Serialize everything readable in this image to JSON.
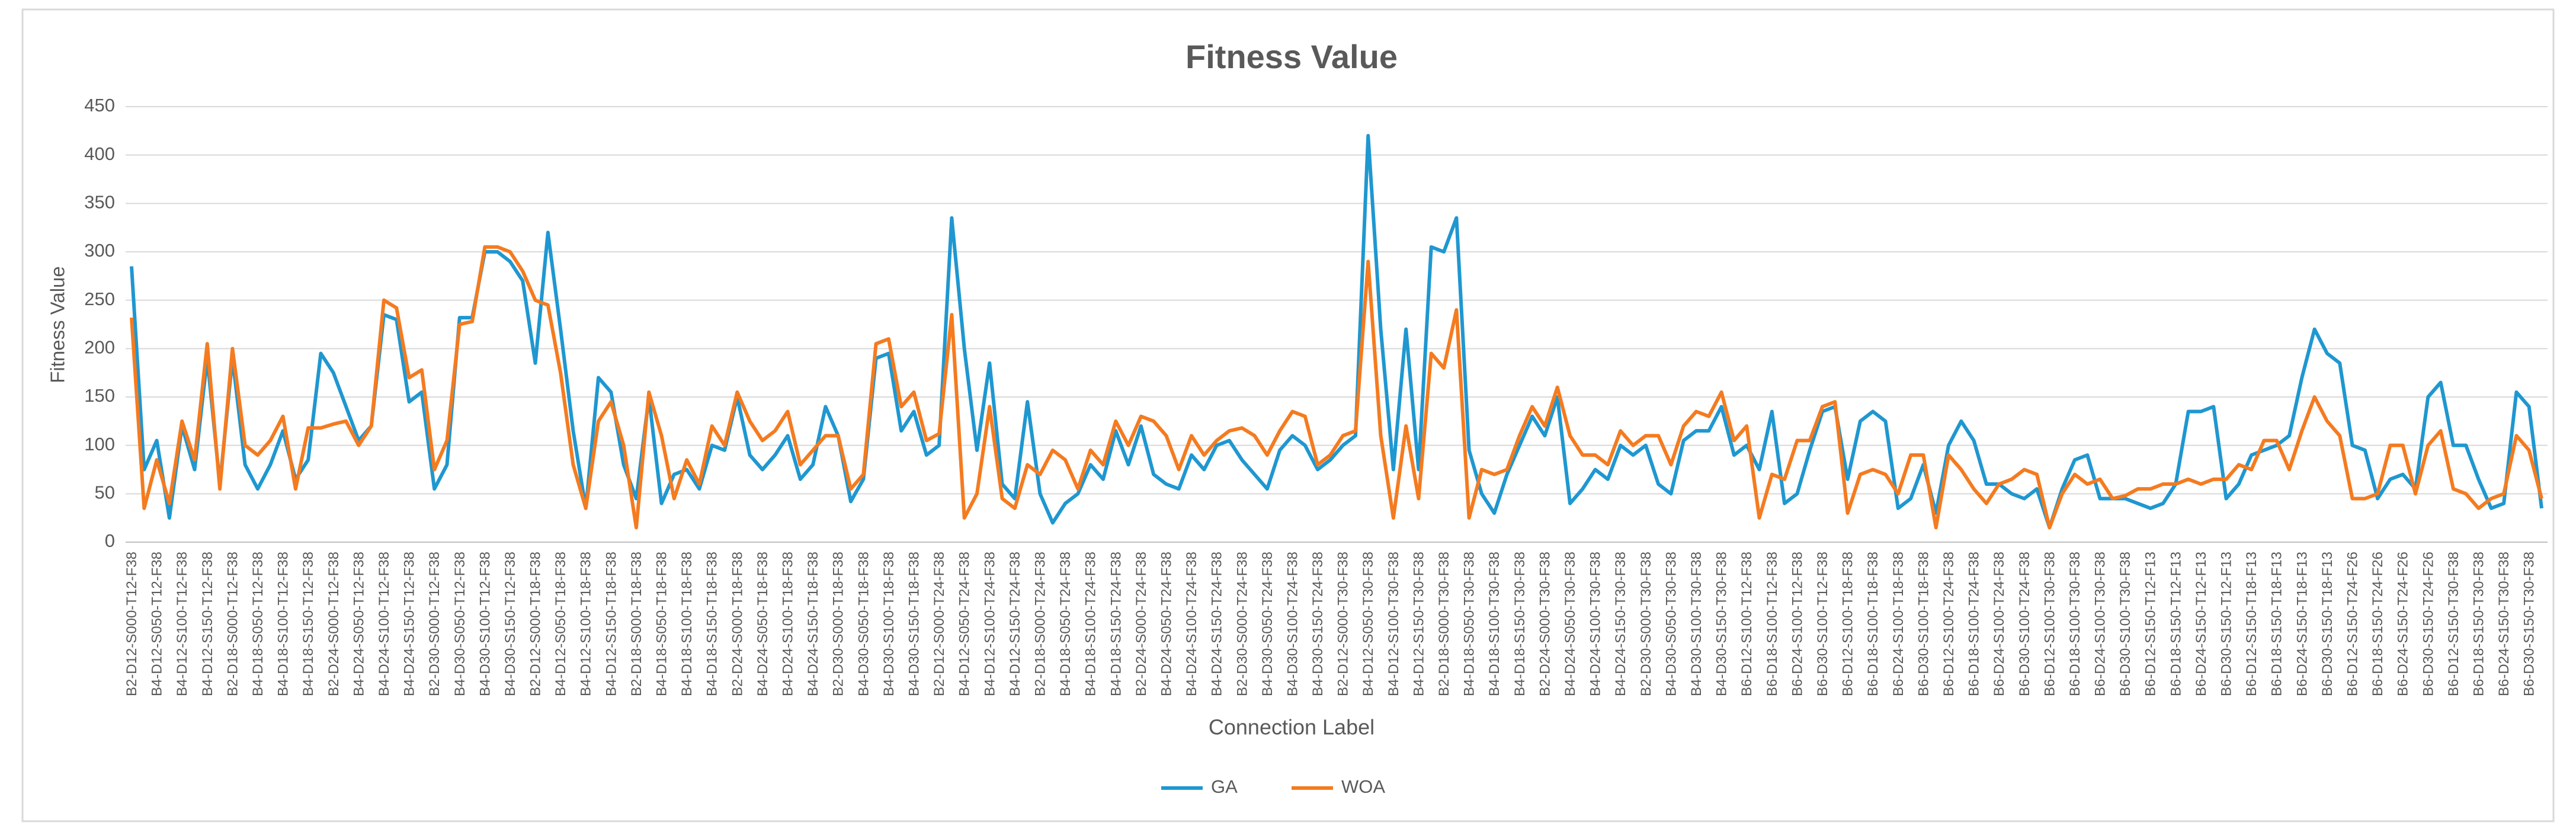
{
  "chart_data": {
    "type": "line",
    "title": "Fitness Value",
    "x_label": "Connection Label",
    "y_label": "Fitness Value",
    "ylim": [
      0,
      450
    ],
    "yticks": [
      0,
      50,
      100,
      150,
      200,
      250,
      300,
      350,
      400,
      450
    ],
    "grid": true,
    "legend": "bottom",
    "categories": [
      "B2-D12-S000-T12-F38",
      null,
      "B4-D12-S050-T12-F38",
      null,
      "B4-D12-S100-T12-F38",
      null,
      "B4-D12-S150-T12-F38",
      null,
      "B2-D18-S000-T12-F38",
      null,
      "B4-D18-S050-T12-F38",
      null,
      "B4-D18-S100-T12-F38",
      null,
      "B4-D18-S150-T12-F38",
      null,
      "B2-D24-S000-T12-F38",
      null,
      "B4-D24-S050-T12-F38",
      null,
      "B4-D24-S100-T12-F38",
      null,
      "B4-D24-S150-T12-F38",
      null,
      "B2-D30-S000-T12-F38",
      null,
      "B4-D30-S050-T12-F38",
      null,
      "B4-D30-S100-T12-F38",
      null,
      "B4-D30-S150-T12-F38",
      null,
      "B2-D12-S000-T18-F38",
      null,
      "B4-D12-S050-T18-F38",
      null,
      "B4-D12-S100-T18-F38",
      null,
      "B4-D12-S150-T18-F38",
      null,
      "B2-D18-S000-T18-F38",
      null,
      "B4-D18-S050-T18-F38",
      null,
      "B4-D18-S100-T18-F38",
      null,
      "B4-D18-S150-T18-F38",
      null,
      "B2-D24-S000-T18-F38",
      null,
      "B4-D24-S050-T18-F38",
      null,
      "B4-D24-S100-T18-F38",
      null,
      "B4-D24-S150-T18-F38",
      null,
      "B2-D30-S000-T18-F38",
      null,
      "B4-D30-S050-T18-F38",
      null,
      "B4-D30-S100-T18-F38",
      null,
      "B4-D30-S150-T18-F38",
      null,
      "B2-D12-S000-T24-F38",
      null,
      "B4-D12-S050-T24-F38",
      null,
      "B4-D12-S100-T24-F38",
      null,
      "B4-D12-S150-T24-F38",
      null,
      "B2-D18-S000-T24-F38",
      null,
      "B4-D18-S050-T24-F38",
      null,
      "B4-D18-S100-T24-F38",
      null,
      "B4-D18-S150-T24-F38",
      null,
      "B2-D24-S000-T24-F38",
      null,
      "B4-D24-S050-T24-F38",
      null,
      "B4-D24-S100-T24-F38",
      null,
      "B4-D24-S150-T24-F38",
      null,
      "B2-D30-S000-T24-F38",
      null,
      "B4-D30-S050-T24-F38",
      null,
      "B4-D30-S100-T24-F38",
      null,
      "B4-D30-S150-T24-F38",
      null,
      "B2-D12-S000-T30-F38",
      null,
      "B4-D12-S050-T30-F38",
      null,
      "B4-D12-S100-T30-F38",
      null,
      "B4-D12-S150-T30-F38",
      null,
      "B2-D18-S000-T30-F38",
      null,
      "B4-D18-S050-T30-F38",
      null,
      "B4-D18-S100-T30-F38",
      null,
      "B4-D18-S150-T30-F38",
      null,
      "B2-D24-S000-T30-F38",
      null,
      "B4-D24-S050-T30-F38",
      null,
      "B4-D24-S100-T30-F38",
      null,
      "B4-D24-S150-T30-F38",
      null,
      "B2-D30-S000-T30-F38",
      null,
      "B4-D30-S050-T30-F38",
      null,
      "B4-D30-S100-T30-F38",
      null,
      "B4-D30-S150-T30-F38",
      null,
      "B6-D12-S100-T12-F38",
      null,
      "B6-D18-S100-T12-F38",
      null,
      "B6-D24-S100-T12-F38",
      null,
      "B6-D30-S100-T12-F38",
      null,
      "B6-D12-S100-T18-F38",
      null,
      "B6-D18-S100-T18-F38",
      null,
      "B6-D24-S100-T18-F38",
      null,
      "B6-D30-S100-T18-F38",
      null,
      "B6-D12-S100-T24-F38",
      null,
      "B6-D18-S100-T24-F38",
      null,
      "B6-D24-S100-T24-F38",
      null,
      "B6-D30-S100-T24-F38",
      null,
      "B6-D12-S100-T30-F38",
      null,
      "B6-D18-S100-T30-F38",
      null,
      "B6-D24-S100-T30-F38",
      null,
      "B6-D30-S100-T30-F38",
      null,
      "B6-D12-S150-T12-F13",
      null,
      "B6-D18-S150-T12-F13",
      null,
      "B6-D24-S150-T12-F13",
      null,
      "B6-D30-S150-T12-F13",
      null,
      "B6-D12-S150-T18-F13",
      null,
      "B6-D18-S150-T18-F13",
      null,
      "B6-D24-S150-T18-F13",
      null,
      "B6-D30-S150-T18-F13",
      null,
      "B6-D12-S150-T24-F26",
      null,
      "B6-D18-S150-T24-F26",
      null,
      "B6-D24-S150-T24-F26",
      null,
      "B6-D30-S150-T24-F26",
      null,
      "B6-D12-S150-T30-F38",
      null,
      "B6-D18-S150-T30-F38",
      null,
      "B6-D24-S150-T30-F38",
      null,
      "B6-D30-S150-T30-F38",
      null
    ],
    "series": [
      {
        "name": "GA",
        "color": "#1f97d0",
        "values": [
          285,
          75,
          105,
          25,
          120,
          75,
          190,
          60,
          190,
          80,
          55,
          80,
          115,
          65,
          85,
          195,
          175,
          140,
          105,
          120,
          235,
          230,
          145,
          155,
          55,
          80,
          232,
          232,
          300,
          300,
          290,
          270,
          185,
          320,
          220,
          115,
          35,
          170,
          155,
          80,
          45,
          150,
          40,
          70,
          75,
          55,
          100,
          95,
          150,
          90,
          75,
          90,
          110,
          65,
          80,
          140,
          110,
          42,
          65,
          190,
          195,
          115,
          135,
          90,
          100,
          335,
          200,
          95,
          185,
          60,
          45,
          145,
          50,
          20,
          40,
          50,
          80,
          65,
          115,
          80,
          120,
          70,
          60,
          55,
          90,
          75,
          100,
          105,
          85,
          70,
          55,
          95,
          110,
          100,
          75,
          85,
          100,
          110,
          420,
          220,
          75,
          220,
          75,
          305,
          300,
          335,
          95,
          50,
          30,
          70,
          100,
          130,
          110,
          150,
          40,
          55,
          75,
          65,
          100,
          90,
          100,
          60,
          50,
          105,
          115,
          115,
          140,
          90,
          100,
          75,
          135,
          40,
          50,
          95,
          135,
          140,
          65,
          125,
          135,
          125,
          35,
          45,
          80,
          30,
          100,
          125,
          105,
          60,
          60,
          50,
          45,
          55,
          15,
          55,
          85,
          90,
          45,
          45,
          45,
          40,
          35,
          40,
          60,
          135,
          135,
          140,
          45,
          60,
          90,
          95,
          100,
          110,
          170,
          220,
          195,
          185,
          100,
          95,
          45,
          65,
          70,
          55,
          150,
          165,
          100,
          100,
          65,
          35,
          40,
          155,
          140,
          35
        ]
      },
      {
        "name": "WOA",
        "color": "#f47b20",
        "values": [
          232,
          35,
          85,
          40,
          125,
          85,
          205,
          55,
          200,
          100,
          90,
          105,
          130,
          55,
          118,
          118,
          122,
          125,
          100,
          120,
          250,
          242,
          170,
          178,
          75,
          105,
          225,
          228,
          305,
          305,
          300,
          280,
          250,
          245,
          175,
          80,
          35,
          125,
          145,
          100,
          15,
          155,
          110,
          45,
          85,
          60,
          120,
          100,
          155,
          125,
          105,
          115,
          135,
          80,
          95,
          110,
          110,
          55,
          70,
          205,
          210,
          140,
          155,
          105,
          112,
          235,
          25,
          50,
          140,
          45,
          35,
          80,
          70,
          95,
          85,
          55,
          95,
          80,
          125,
          100,
          130,
          125,
          110,
          75,
          110,
          90,
          105,
          115,
          118,
          110,
          90,
          115,
          135,
          130,
          80,
          90,
          110,
          115,
          290,
          110,
          25,
          120,
          45,
          195,
          180,
          240,
          25,
          75,
          70,
          75,
          110,
          140,
          120,
          160,
          110,
          90,
          90,
          80,
          115,
          100,
          110,
          110,
          80,
          120,
          135,
          130,
          155,
          105,
          120,
          25,
          70,
          65,
          105,
          105,
          140,
          145,
          30,
          70,
          75,
          70,
          50,
          90,
          90,
          15,
          90,
          75,
          55,
          40,
          60,
          65,
          75,
          70,
          15,
          50,
          70,
          60,
          65,
          45,
          48,
          55,
          55,
          60,
          60,
          65,
          60,
          65,
          65,
          80,
          75,
          105,
          105,
          75,
          115,
          150,
          125,
          110,
          45,
          45,
          50,
          100,
          100,
          50,
          100,
          115,
          55,
          50,
          35,
          45,
          50,
          110,
          95,
          45
        ]
      }
    ]
  }
}
